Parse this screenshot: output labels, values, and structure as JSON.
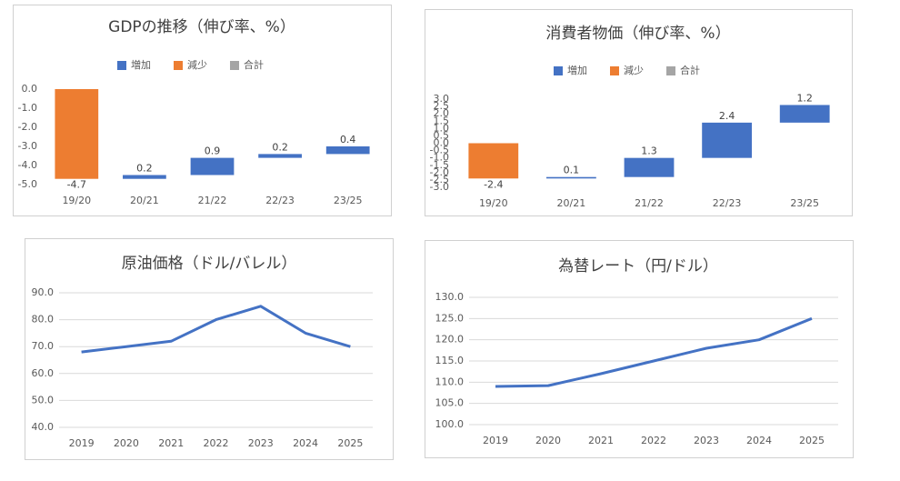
{
  "chart_data": [
    {
      "type": "waterfall",
      "title": "GDPの推移（伸び率、%）",
      "legend": [
        {
          "name": "増加",
          "color": "#4472c4"
        },
        {
          "name": "減少",
          "color": "#ed7d31"
        },
        {
          "name": "合計",
          "color": "#a5a5a5"
        }
      ],
      "categories": [
        "19/20",
        "20/21",
        "21/22",
        "22/23",
        "23/25"
      ],
      "values": [
        -4.7,
        0.2,
        0.9,
        0.2,
        0.4
      ],
      "ylim": [
        -5,
        0
      ],
      "yticks": [
        {
          "value": -5,
          "label": "-5.0"
        },
        {
          "value": -4,
          "label": "-4.0"
        },
        {
          "value": -3,
          "label": "-3.0"
        },
        {
          "value": -2,
          "label": "-2.0"
        },
        {
          "value": -1,
          "label": "-1.0"
        },
        {
          "value": 0,
          "label": "0.0"
        }
      ],
      "grid": false
    },
    {
      "type": "waterfall",
      "title": "消費者物価（伸び率、%）",
      "legend": [
        {
          "name": "増加",
          "color": "#4472c4"
        },
        {
          "name": "減少",
          "color": "#ed7d31"
        },
        {
          "name": "合計",
          "color": "#a5a5a5"
        }
      ],
      "categories": [
        "19/20",
        "20/21",
        "21/22",
        "22/23",
        "23/25"
      ],
      "values": [
        -2.4,
        0.1,
        1.3,
        2.4,
        1.2
      ],
      "ylim": [
        -3,
        3
      ],
      "yticks": [
        {
          "value": -3,
          "label": "-3.0"
        },
        {
          "value": -2.5,
          "label": "-2.5"
        },
        {
          "value": -2,
          "label": "-2.0"
        },
        {
          "value": -1.5,
          "label": "-1.5"
        },
        {
          "value": -1,
          "label": "-1.0"
        },
        {
          "value": -0.5,
          "label": "-0.5"
        },
        {
          "value": 0,
          "label": "0.0"
        },
        {
          "value": 0.5,
          "label": "0.5"
        },
        {
          "value": 1,
          "label": "1.0"
        },
        {
          "value": 1.5,
          "label": "1.5"
        },
        {
          "value": 2,
          "label": "2.0"
        },
        {
          "value": 2.5,
          "label": "2.5"
        },
        {
          "value": 3,
          "label": "3.0"
        }
      ],
      "grid": false
    },
    {
      "type": "line",
      "title": "原油価格（ドル/バレル）",
      "color": "#4472c4",
      "categories": [
        "2019",
        "2020",
        "2021",
        "2022",
        "2023",
        "2024",
        "2025"
      ],
      "values": [
        68,
        70,
        72,
        80,
        85,
        75,
        70
      ],
      "ylim": [
        40,
        90
      ],
      "yticks": [
        {
          "value": 40,
          "label": "40.0"
        },
        {
          "value": 50,
          "label": "50.0"
        },
        {
          "value": 60,
          "label": "60.0"
        },
        {
          "value": 70,
          "label": "70.0"
        },
        {
          "value": 80,
          "label": "80.0"
        },
        {
          "value": 90,
          "label": "90.0"
        }
      ],
      "grid": true
    },
    {
      "type": "line",
      "title": "為替レート（円/ドル）",
      "color": "#4472c4",
      "categories": [
        "2019",
        "2020",
        "2021",
        "2022",
        "2023",
        "2024",
        "2025"
      ],
      "values": [
        109,
        109.2,
        112,
        115,
        118,
        120,
        125
      ],
      "ylim": [
        100,
        130
      ],
      "yticks": [
        {
          "value": 100,
          "label": "100.0"
        },
        {
          "value": 105,
          "label": "105.0"
        },
        {
          "value": 110,
          "label": "110.0"
        },
        {
          "value": 115,
          "label": "115.0"
        },
        {
          "value": 120,
          "label": "120.0"
        },
        {
          "value": 125,
          "label": "125.0"
        },
        {
          "value": 130,
          "label": "130.0"
        }
      ],
      "grid": true
    }
  ]
}
